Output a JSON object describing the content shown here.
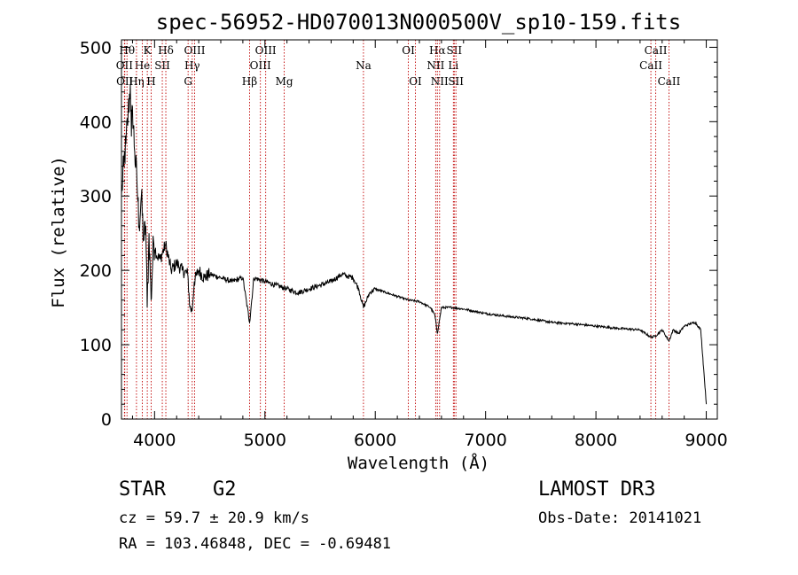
{
  "chart_data": {
    "type": "line",
    "title": "spec-56952-HD070013N000500V_sp10-159.fits",
    "xlabel": "Wavelength (Å)",
    "ylabel": "Flux (relative)",
    "xlim": [
      3700,
      9100
    ],
    "ylim": [
      0,
      510
    ],
    "xticks": [
      4000,
      5000,
      6000,
      7000,
      8000,
      9000
    ],
    "xticklabels": [
      "4000",
      "5000",
      "6000",
      "7000",
      "8000",
      "9000"
    ],
    "yticks": [
      0,
      100,
      200,
      300,
      400,
      500
    ],
    "yticklabels": [
      "0",
      "100",
      "200",
      "300",
      "400",
      "500"
    ],
    "series": [
      {
        "name": "flux",
        "x": [
          3700,
          3720,
          3740,
          3760,
          3780,
          3790,
          3800,
          3820,
          3840,
          3860,
          3880,
          3900,
          3920,
          3933,
          3950,
          3968,
          3990,
          4020,
          4050,
          4100,
          4150,
          4200,
          4250,
          4300,
          4320,
          4340,
          4360,
          4400,
          4450,
          4500,
          4600,
          4700,
          4800,
          4861,
          4900,
          5000,
          5100,
          5200,
          5300,
          5400,
          5500,
          5600,
          5700,
          5750,
          5800,
          5850,
          5893,
          5950,
          6000,
          6100,
          6200,
          6300,
          6400,
          6500,
          6540,
          6563,
          6600,
          6700,
          6800,
          6900,
          7000,
          7200,
          7400,
          7600,
          7800,
          8000,
          8200,
          8400,
          8498,
          8542,
          8600,
          8662,
          8700,
          8750,
          8800,
          8850,
          8900,
          8950,
          8980,
          9000
        ],
        "y": [
          300,
          340,
          370,
          410,
          450,
          380,
          420,
          360,
          320,
          260,
          300,
          240,
          260,
          150,
          250,
          160,
          240,
          220,
          215,
          235,
          200,
          210,
          200,
          195,
          150,
          145,
          185,
          200,
          190,
          195,
          190,
          185,
          190,
          130,
          190,
          185,
          180,
          175,
          170,
          175,
          180,
          185,
          195,
          192,
          190,
          175,
          150,
          170,
          175,
          170,
          165,
          160,
          158,
          150,
          140,
          115,
          150,
          150,
          148,
          145,
          142,
          138,
          135,
          130,
          128,
          125,
          122,
          120,
          110,
          112,
          120,
          105,
          120,
          115,
          125,
          128,
          130,
          120,
          60,
          20
        ]
      }
    ],
    "lines": [
      {
        "name": "Hθ",
        "x": 3750,
        "row": 0
      },
      {
        "name": "OII",
        "x": 3727,
        "row": 1
      },
      {
        "name": "OII",
        "x": 3730,
        "row": 2
      },
      {
        "name": "K",
        "x": 3934,
        "row": 0
      },
      {
        "name": "He",
        "x": 3889,
        "row": 1
      },
      {
        "name": "Hη",
        "x": 3836,
        "row": 2
      },
      {
        "name": "SII",
        "x": 4070,
        "row": 1
      },
      {
        "name": "H",
        "x": 3969,
        "row": 2
      },
      {
        "name": "Hδ",
        "x": 4102,
        "row": 0
      },
      {
        "name": "OIII",
        "x": 4363,
        "row": 0
      },
      {
        "name": "Hγ",
        "x": 4341,
        "row": 1
      },
      {
        "name": "G",
        "x": 4304,
        "row": 2
      },
      {
        "name": "OIII",
        "x": 5007,
        "row": 0
      },
      {
        "name": "OIII",
        "x": 4959,
        "row": 1
      },
      {
        "name": "Hβ",
        "x": 4861,
        "row": 2
      },
      {
        "name": "Mg",
        "x": 5175,
        "row": 2
      },
      {
        "name": "Na",
        "x": 5893,
        "row": 1
      },
      {
        "name": "OI",
        "x": 6300,
        "row": 0
      },
      {
        "name": "OI",
        "x": 6364,
        "row": 2
      },
      {
        "name": "Hα",
        "x": 6563,
        "row": 0
      },
      {
        "name": "NII",
        "x": 6548,
        "row": 1
      },
      {
        "name": "NII",
        "x": 6583,
        "row": 2
      },
      {
        "name": "SII",
        "x": 6716,
        "row": 0
      },
      {
        "name": "Li",
        "x": 6708,
        "row": 1
      },
      {
        "name": "SII",
        "x": 6731,
        "row": 2
      },
      {
        "name": "CaII",
        "x": 8542,
        "row": 0
      },
      {
        "name": "CaII",
        "x": 8498,
        "row": 1
      },
      {
        "name": "CaII",
        "x": 8662,
        "row": 2
      }
    ]
  },
  "info": {
    "object_class": "STAR",
    "subclass": "G2",
    "survey": "LAMOST DR3",
    "cz": "cz = 59.7 ± 20.9 km/s",
    "obs_date": "Obs-Date: 20141021",
    "coords": "RA = 103.46848, DEC =  -0.69481"
  }
}
